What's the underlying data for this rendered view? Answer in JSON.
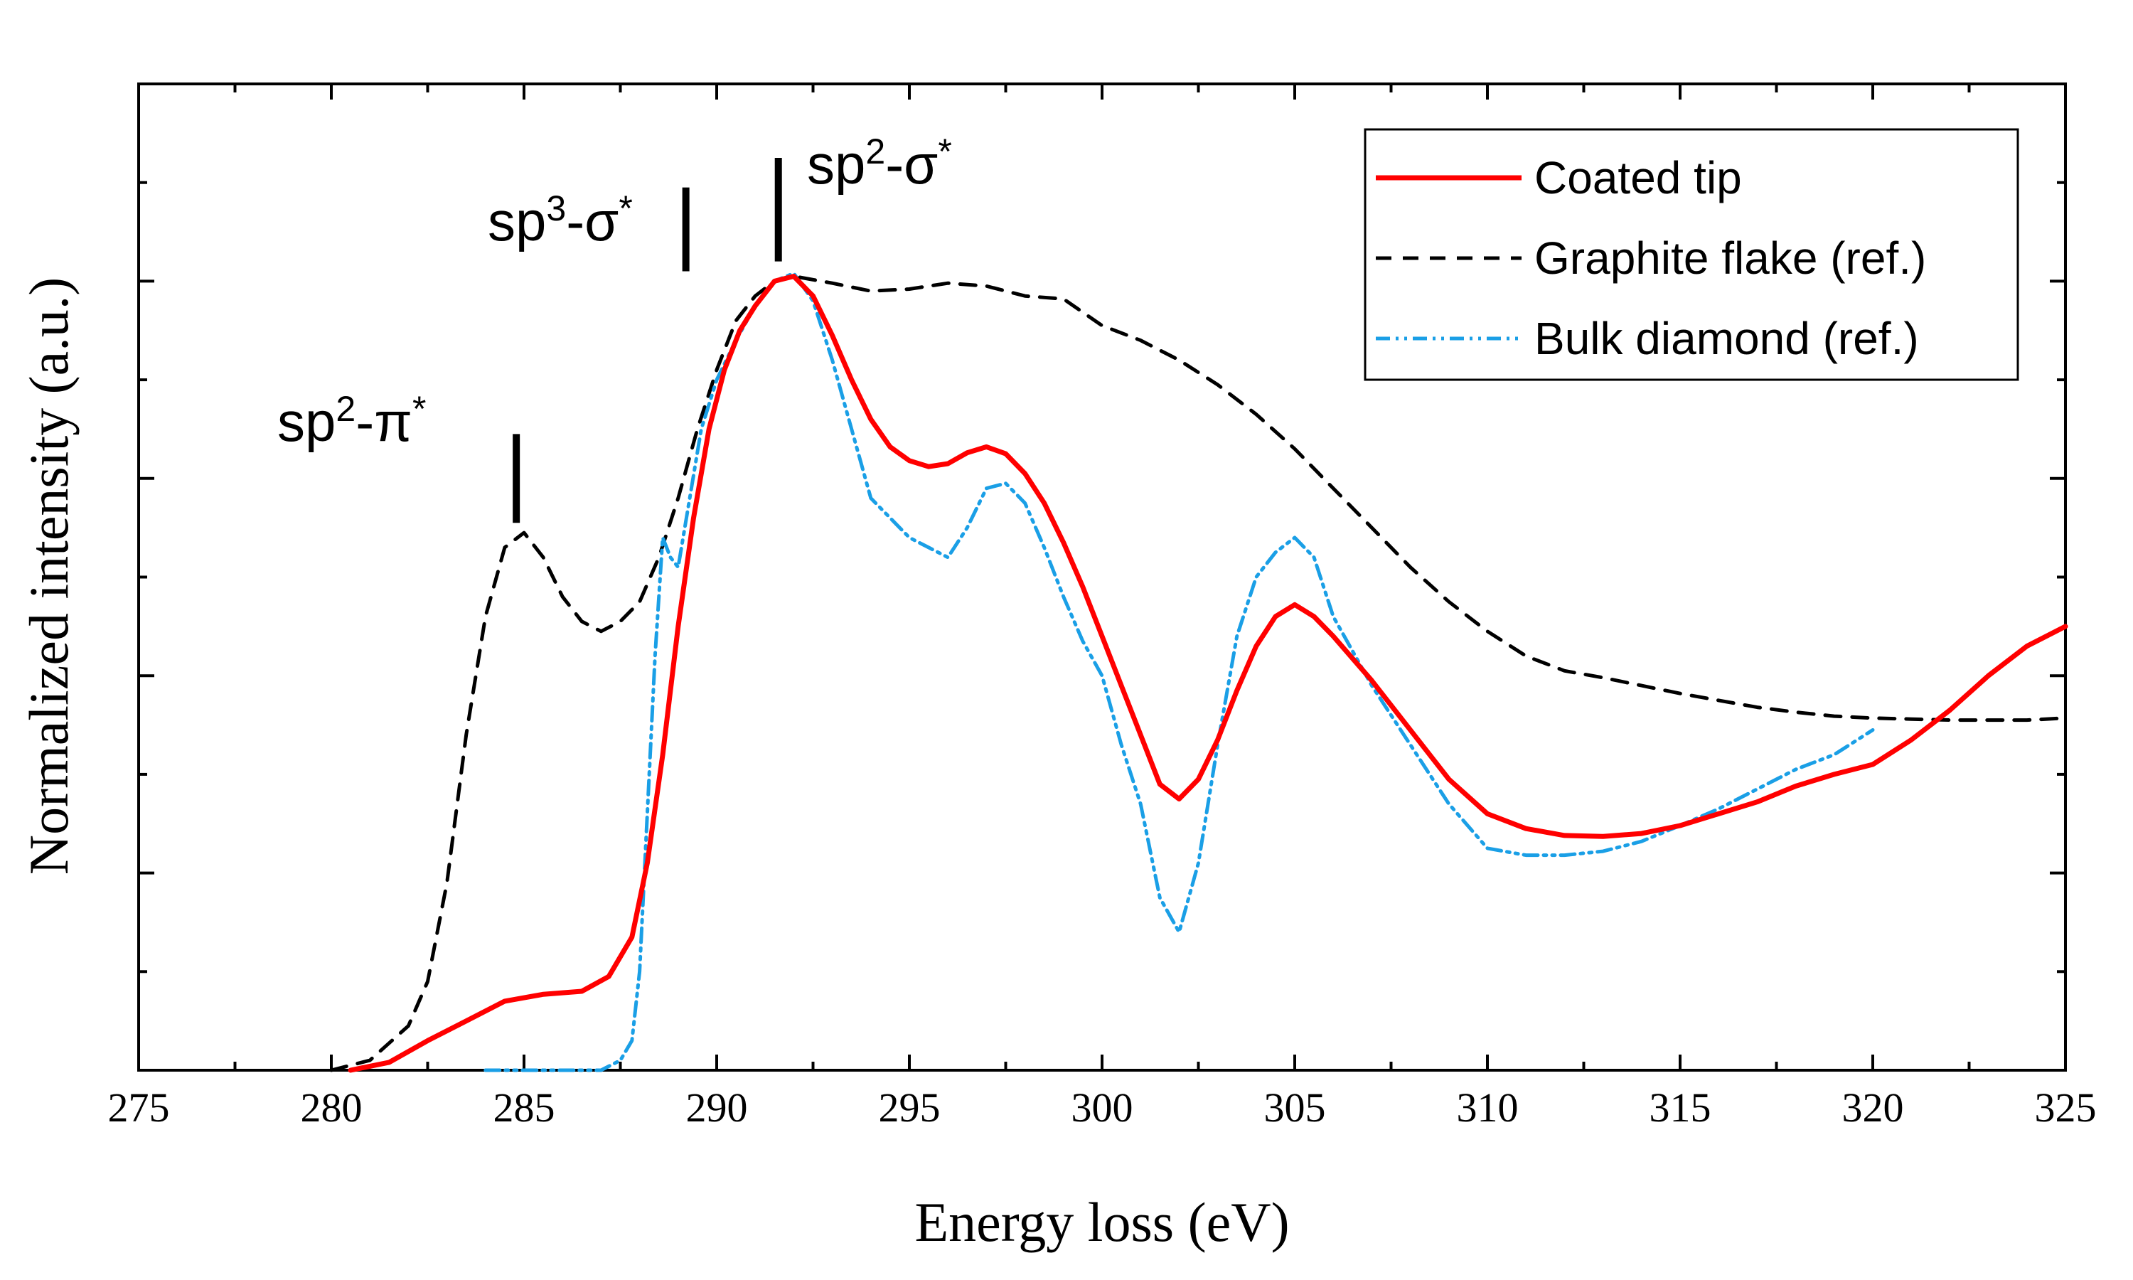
{
  "chart_data": {
    "type": "line",
    "title": "",
    "xlabel": "Energy loss (eV)",
    "ylabel": "Normalized intensity (a.u.)",
    "xlim": [
      275,
      325
    ],
    "ylim": [
      0,
      10
    ],
    "xticks": [
      275,
      280,
      285,
      290,
      295,
      300,
      305,
      310,
      315,
      320,
      325
    ],
    "xtick_labels": [
      "275",
      "280",
      "285",
      "290",
      "295",
      "300",
      "305",
      "310",
      "315",
      "320",
      "325"
    ],
    "yticks": [
      1,
      2,
      3,
      4,
      5,
      6,
      7,
      8,
      9,
      10
    ],
    "legend_position": "top-right",
    "grid": false,
    "series": [
      {
        "name": "Coated tip",
        "color": "#ff0000",
        "style": "solid",
        "x": [
          280.5,
          281.5,
          282.5,
          283.5,
          284.5,
          285.5,
          286.5,
          287.2,
          287.8,
          288.2,
          288.6,
          289.0,
          289.4,
          289.8,
          290.2,
          290.6,
          291.0,
          291.5,
          292.0,
          292.5,
          293.0,
          293.5,
          294.0,
          294.5,
          295.0,
          295.5,
          296.0,
          296.5,
          297.0,
          297.5,
          298.0,
          298.5,
          299.0,
          299.5,
          300.0,
          300.5,
          301.0,
          301.5,
          302.0,
          302.5,
          303.0,
          303.5,
          304.0,
          304.5,
          305.0,
          305.5,
          306.0,
          307.0,
          308.0,
          309.0,
          310.0,
          311.0,
          312.0,
          313.0,
          314.0,
          315.0,
          316.0,
          317.0,
          318.0,
          319.0,
          320.0,
          321.0,
          322.0,
          323.0,
          324.0,
          325.0
        ],
        "y": [
          0.0,
          0.08,
          0.3,
          0.5,
          0.7,
          0.77,
          0.8,
          0.95,
          1.35,
          2.1,
          3.2,
          4.5,
          5.6,
          6.5,
          7.1,
          7.5,
          7.75,
          8.0,
          8.05,
          7.85,
          7.45,
          7.0,
          6.6,
          6.32,
          6.18,
          6.12,
          6.15,
          6.26,
          6.32,
          6.25,
          6.05,
          5.75,
          5.35,
          4.9,
          4.4,
          3.9,
          3.4,
          2.9,
          2.75,
          2.95,
          3.35,
          3.85,
          4.3,
          4.6,
          4.72,
          4.6,
          4.4,
          3.95,
          3.45,
          2.95,
          2.6,
          2.45,
          2.38,
          2.37,
          2.4,
          2.48,
          2.6,
          2.72,
          2.88,
          3.0,
          3.1,
          3.35,
          3.65,
          4.0,
          4.3,
          4.5
        ]
      },
      {
        "name": "Graphite flake (ref.)",
        "color": "#000000",
        "style": "dashed",
        "x": [
          280.0,
          281.0,
          282.0,
          282.5,
          283.0,
          283.5,
          284.0,
          284.5,
          285.0,
          285.5,
          286.0,
          286.5,
          287.0,
          287.5,
          288.0,
          288.5,
          289.0,
          289.5,
          290.0,
          290.5,
          291.0,
          291.5,
          292.0,
          293.0,
          294.0,
          295.0,
          296.0,
          297.0,
          298.0,
          299.0,
          300.0,
          301.0,
          302.0,
          303.0,
          304.0,
          305.0,
          306.0,
          307.0,
          308.0,
          309.0,
          310.0,
          311.0,
          312.0,
          313.0,
          314.0,
          315.0,
          316.0,
          317.0,
          318.0,
          319.0,
          320.0,
          321.0,
          322.0,
          323.0,
          324.0,
          325.0
        ],
        "y": [
          0.0,
          0.1,
          0.45,
          0.9,
          1.9,
          3.4,
          4.6,
          5.3,
          5.45,
          5.2,
          4.8,
          4.55,
          4.45,
          4.55,
          4.75,
          5.2,
          5.8,
          6.5,
          7.1,
          7.6,
          7.85,
          8.0,
          8.05,
          7.98,
          7.9,
          7.92,
          7.98,
          7.95,
          7.85,
          7.82,
          7.55,
          7.4,
          7.2,
          6.95,
          6.65,
          6.3,
          5.9,
          5.5,
          5.1,
          4.75,
          4.45,
          4.2,
          4.05,
          3.98,
          3.9,
          3.82,
          3.75,
          3.68,
          3.63,
          3.59,
          3.57,
          3.56,
          3.55,
          3.55,
          3.55,
          3.57
        ]
      },
      {
        "name": "Bulk diamond (ref.)",
        "color": "#1a9fe6",
        "style": "dash-dot-dot",
        "x": [
          284.0,
          285.0,
          286.0,
          287.0,
          287.5,
          287.8,
          288.0,
          288.2,
          288.4,
          288.6,
          288.8,
          289.0,
          289.3,
          289.6,
          290.0,
          290.5,
          291.0,
          291.5,
          292.0,
          292.5,
          293.0,
          293.5,
          294.0,
          294.5,
          295.0,
          295.5,
          296.0,
          296.5,
          297.0,
          297.5,
          298.0,
          298.5,
          299.0,
          299.5,
          300.0,
          300.5,
          301.0,
          301.5,
          302.0,
          302.5,
          303.0,
          303.5,
          304.0,
          304.5,
          305.0,
          305.5,
          306.0,
          307.0,
          308.0,
          309.0,
          310.0,
          311.0,
          312.0,
          313.0,
          314.0,
          315.0,
          316.0,
          317.0,
          318.0,
          319.0,
          320.0
        ],
        "y": [
          0.0,
          0.0,
          0.0,
          0.0,
          0.1,
          0.3,
          1.0,
          2.6,
          4.2,
          5.4,
          5.2,
          5.1,
          5.8,
          6.5,
          7.0,
          7.4,
          7.75,
          8.0,
          8.08,
          7.8,
          7.2,
          6.5,
          5.8,
          5.6,
          5.4,
          5.3,
          5.2,
          5.5,
          5.9,
          5.95,
          5.75,
          5.3,
          4.8,
          4.35,
          4.0,
          3.3,
          2.7,
          1.75,
          1.4,
          2.1,
          3.3,
          4.4,
          5.0,
          5.25,
          5.4,
          5.2,
          4.6,
          3.9,
          3.3,
          2.7,
          2.25,
          2.18,
          2.18,
          2.22,
          2.32,
          2.48,
          2.65,
          2.85,
          3.05,
          3.2,
          3.45
        ]
      }
    ],
    "annotations": [
      {
        "text": "sp2-π*",
        "base": "sp",
        "sup1": "2",
        "mid": "-π",
        "sup2": "*",
        "x": 284.8,
        "marker_y": [
          5.55,
          6.45
        ]
      },
      {
        "text": "sp3-σ*",
        "base": "sp",
        "sup1": "3",
        "mid": "-σ",
        "sup2": "*",
        "x": 289.2,
        "marker_y": [
          8.1,
          8.95
        ]
      },
      {
        "text": "sp2-σ*",
        "base": "sp",
        "sup1": "2",
        "mid": "-σ",
        "sup2": "*",
        "x": 291.6,
        "marker_y": [
          8.2,
          9.25
        ]
      }
    ]
  }
}
